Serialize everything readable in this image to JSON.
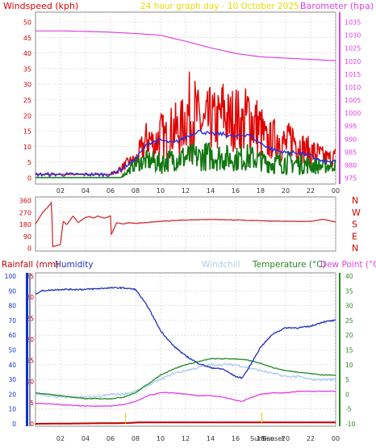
{
  "header": {
    "windspeed_label": "Windspeed (kph)",
    "title": "24 hour graph day - 10 October 2025",
    "barometer_label": "Barometer (hpa)"
  },
  "colors": {
    "wind": "#e00000",
    "wind_avg": "#2233dd",
    "wind_dark": "#117711",
    "barometer": "#e040e0",
    "title": "#ffee00",
    "direction": "#d03030",
    "rain": "#c00000",
    "humidity": "#2233bb",
    "windchill": "#aaccee",
    "temperature": "#228822",
    "dewpoint": "#e040e0",
    "grid": "#cfcfcf"
  },
  "time_axis": {
    "labels": [
      "02",
      "04",
      "06",
      "08",
      "10",
      "12",
      "14",
      "16",
      "18",
      "20",
      "22",
      "00"
    ],
    "sunrise_label": "Sunrise",
    "sunset_label": "Sunset"
  },
  "wind_panel": {
    "left_ticks": [
      "0",
      "5",
      "10",
      "15",
      "20",
      "25",
      "30",
      "35",
      "40",
      "45",
      "50"
    ],
    "right_ticks": [
      "975",
      "980",
      "985",
      "990",
      "995",
      "1000",
      "1005",
      "1010",
      "1015",
      "1020",
      "1025",
      "1030",
      "1035"
    ]
  },
  "direction_panel": {
    "left_ticks": [
      "0",
      "90",
      "180",
      "270",
      "360"
    ],
    "right_labels": [
      "N",
      "W",
      "S",
      "E",
      "N"
    ]
  },
  "lower_panel": {
    "legend": {
      "rainfall": "Rainfall (mm)",
      "humidity": "Humidity",
      "windchill": "Windchill",
      "temperature": "Temperature (°C)",
      "dewpoint": "Dew Point (°C)"
    },
    "rain_ticks": [
      "0",
      "10",
      "20",
      "30",
      "40",
      "50",
      "60",
      "70",
      "80",
      "90",
      "100"
    ],
    "mid_ticks": [
      "0",
      "5",
      "10",
      "15",
      "20",
      "25",
      "30",
      "35"
    ],
    "temp_ticks": [
      "-10",
      "-5",
      "0",
      "5",
      "10",
      "15",
      "20",
      "25",
      "30",
      "35",
      "40"
    ]
  },
  "chart_data": [
    {
      "type": "line",
      "title": "24 hour graph day - 10 October 2025",
      "x_unit": "hours",
      "x_range": [
        0,
        24
      ],
      "ylim_left": [
        0,
        50
      ],
      "ylim_right": [
        975,
        1035
      ],
      "series": [
        {
          "name": "Windspeed (kph)",
          "axis": "left",
          "kind": "gust-band",
          "x": [
            0,
            6,
            6.5,
            7,
            7.5,
            8,
            8.5,
            9,
            9.5,
            10,
            10.5,
            11,
            11.5,
            12,
            12.5,
            13,
            13.5,
            14,
            14.5,
            15,
            15.5,
            16,
            16.5,
            17,
            17.5,
            18,
            18.5,
            19,
            19.5,
            20,
            20.5,
            21,
            21.5,
            22,
            22.5,
            23,
            23.5,
            24
          ],
          "min": [
            1,
            1,
            1,
            2,
            3,
            3,
            4,
            6,
            5,
            6,
            5,
            7,
            6,
            9,
            5,
            9,
            6,
            8,
            7,
            10,
            7,
            9,
            6,
            8,
            6,
            5,
            5,
            6,
            5,
            4,
            6,
            5,
            4,
            3,
            4,
            3,
            3,
            4
          ],
          "max": [
            1,
            1,
            3,
            5,
            7,
            8,
            14,
            20,
            16,
            22,
            19,
            25,
            23,
            30,
            37,
            29,
            26,
            30,
            27,
            33,
            28,
            31,
            26,
            32,
            28,
            25,
            17,
            19,
            21,
            16,
            20,
            17,
            14,
            13,
            12,
            10,
            9,
            10
          ]
        },
        {
          "name": "Average windspeed",
          "axis": "left",
          "x": [
            0,
            6,
            7,
            8,
            9,
            10,
            11,
            12,
            13,
            14,
            15,
            16,
            17,
            18,
            19,
            20,
            21,
            22,
            23,
            24
          ],
          "y": [
            1,
            1,
            3,
            6,
            11,
            12,
            11,
            13,
            15,
            14,
            14,
            13,
            14,
            11,
            9,
            8,
            8,
            7,
            5,
            5
          ]
        },
        {
          "name": "Windspeed (low band)",
          "axis": "left",
          "kind": "gust-band",
          "x": [
            0,
            6.8,
            7.5,
            8,
            9,
            10,
            11,
            12,
            13,
            14,
            15,
            16,
            17,
            18,
            19,
            20,
            21,
            22,
            23,
            24
          ],
          "min": [
            0,
            0,
            1,
            2,
            2,
            1,
            2,
            2,
            2,
            2,
            2,
            2,
            2,
            2,
            1,
            1,
            1,
            1,
            1,
            2
          ],
          "max": [
            0,
            0,
            4,
            7,
            9,
            8,
            10,
            11,
            11,
            12,
            11,
            10,
            11,
            9,
            8,
            9,
            8,
            7,
            6,
            6
          ]
        },
        {
          "name": "Barometer (hpa)",
          "axis": "right",
          "x": [
            0,
            2,
            4,
            6,
            8,
            10,
            12,
            14,
            16,
            18,
            20,
            22,
            24
          ],
          "y": [
            1031.5,
            1031.5,
            1031.3,
            1031,
            1030.5,
            1029.8,
            1027.5,
            1025,
            1022.8,
            1021.5,
            1021,
            1020.5,
            1020
          ]
        }
      ]
    },
    {
      "type": "line",
      "title": "",
      "x_unit": "hours",
      "x_range": [
        0,
        24
      ],
      "ylim": [
        0,
        360
      ],
      "series": [
        {
          "name": "Wind direction",
          "x": [
            0,
            0.6,
            1,
            1.3,
            1.35,
            1.6,
            2,
            2.2,
            2.5,
            3,
            3.4,
            4,
            4.3,
            4.6,
            5,
            5.5,
            6,
            6.05,
            6.5,
            7,
            7.5,
            8,
            10,
            12,
            14,
            16,
            18,
            20,
            22,
            23,
            24
          ],
          "y": [
            180,
            270,
            310,
            345,
            10,
            15,
            25,
            200,
            175,
            240,
            190,
            230,
            235,
            225,
            240,
            225,
            240,
            100,
            190,
            180,
            190,
            185,
            200,
            210,
            215,
            210,
            205,
            200,
            200,
            215,
            195
          ]
        }
      ]
    },
    {
      "type": "line",
      "title": "",
      "x_unit": "hours",
      "x_range": [
        0,
        24
      ],
      "ylim_rain": [
        0,
        100
      ],
      "ylim_humidity": [
        0,
        35
      ],
      "ylim_temp": [
        -10,
        40
      ],
      "series": [
        {
          "name": "Humidity",
          "axis": "humidity",
          "x": [
            0,
            0.5,
            2,
            4,
            6,
            7,
            8,
            9,
            10,
            11,
            12,
            13,
            14,
            15,
            16,
            16.5,
            17,
            18,
            19,
            20,
            21,
            22,
            23,
            24
          ],
          "y": [
            88,
            90,
            91,
            91,
            92,
            92,
            91,
            79,
            63,
            53,
            46,
            41,
            38,
            37,
            32,
            31,
            37,
            52,
            61,
            65,
            65,
            66,
            69,
            70
          ]
        },
        {
          "name": "Windchill",
          "axis": "temp",
          "x": [
            0,
            2,
            4,
            5,
            6,
            7,
            8,
            9,
            10,
            11,
            12,
            13,
            14,
            15,
            16,
            17,
            18,
            19,
            20,
            21,
            22,
            23,
            24
          ],
          "y": [
            0,
            -1,
            -1,
            -1,
            0,
            0,
            1,
            3,
            5,
            7,
            8,
            9,
            10,
            10,
            10,
            9,
            8,
            7,
            6,
            6,
            5,
            5,
            5
          ]
        },
        {
          "name": "Temperature (°C)",
          "axis": "temp",
          "x": [
            0,
            2,
            4,
            6,
            7,
            8,
            9,
            10,
            11,
            12,
            13,
            14,
            15,
            16,
            17,
            18,
            19,
            20,
            21,
            22,
            23,
            24
          ],
          "y": [
            0.5,
            -0.5,
            -1.5,
            -1.5,
            -1,
            0.5,
            3.5,
            6.5,
            8.5,
            10,
            11,
            12,
            12,
            12,
            11.5,
            10.5,
            9,
            8,
            7.5,
            7,
            6.5,
            6.5
          ]
        },
        {
          "name": "Dew Point (°C)",
          "axis": "temp",
          "x": [
            0,
            2,
            4,
            6,
            7,
            8,
            9,
            10,
            11,
            12,
            13,
            14,
            15,
            16,
            16.5,
            17,
            18,
            19,
            20,
            21,
            22,
            23,
            24
          ],
          "y": [
            -3,
            -3.5,
            -4,
            -4,
            -3.5,
            -2.5,
            -0.5,
            0.5,
            0.5,
            0,
            -0.5,
            -0.5,
            -1,
            -2,
            -2.5,
            -1.5,
            0,
            0.5,
            0.5,
            1,
            1,
            1,
            1
          ]
        },
        {
          "name": "Rainfall (mm)",
          "axis": "rain",
          "x": [
            0,
            7.2,
            8.5,
            24
          ],
          "y": [
            0,
            0.5,
            1,
            1
          ]
        }
      ],
      "sunrise_hour": 7.2,
      "sunset_hour": 18.1
    }
  ]
}
